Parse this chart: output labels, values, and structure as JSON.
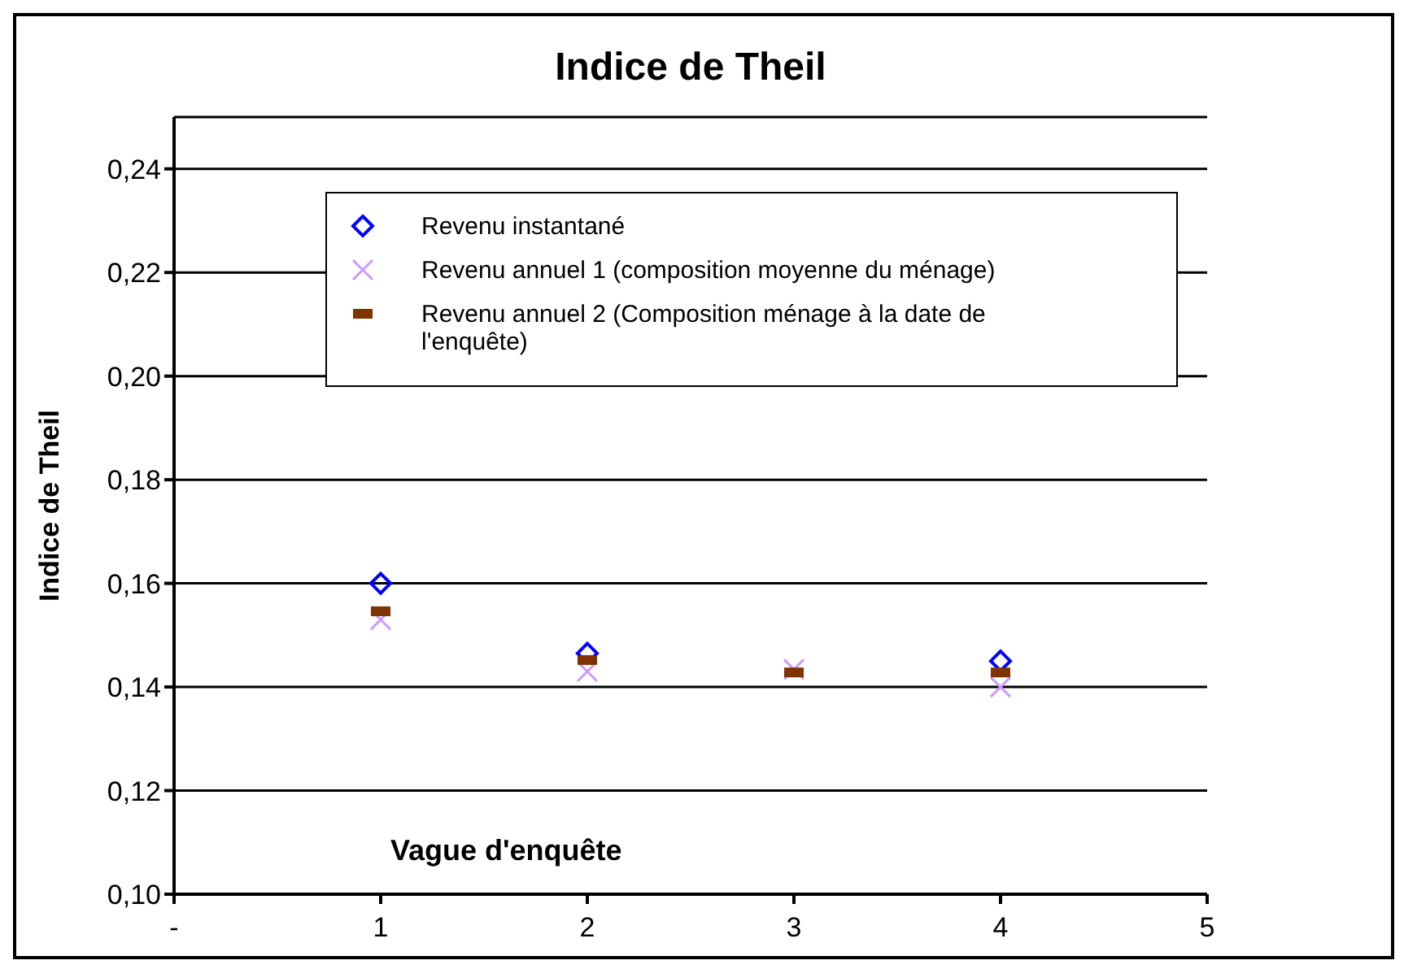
{
  "chart_data": {
    "type": "scatter",
    "title": "Indice de Theil",
    "xlabel": "Vague d'enquête",
    "ylabel": "Indice de Theil",
    "x": [
      1,
      2,
      3,
      4
    ],
    "series": [
      {
        "name": "Revenu instantané",
        "color": "#0000ff",
        "marker": "diamond",
        "values": [
          0.16,
          0.1465,
          null,
          0.145
        ]
      },
      {
        "name": "Revenu annuel 1 (composition moyenne du ménage)",
        "color": "#cc99ff",
        "marker": "cross",
        "values": [
          0.153,
          0.143,
          0.1434,
          0.14
        ]
      },
      {
        "name": "Revenu annuel 2 (Composition ménage à la date de l'enquête)",
        "color": "#7f3300",
        "values": [
          0.1546,
          0.1452,
          0.1428,
          0.1428
        ]
      }
    ],
    "xlim": [
      0,
      5
    ],
    "xticks": [
      {
        "value": 0,
        "label": "-"
      },
      1,
      2,
      3,
      4,
      5
    ],
    "ylim": [
      0.1,
      0.25
    ],
    "yticks": [
      {
        "value": 0.1,
        "label": "0,10"
      },
      {
        "value": 0.12,
        "label": "0,12"
      },
      {
        "value": 0.14,
        "label": "0,14"
      },
      {
        "value": 0.16,
        "label": "0,16"
      },
      {
        "value": 0.18,
        "label": "0,18"
      },
      {
        "value": 0.2,
        "label": "0,20"
      },
      {
        "value": 0.22,
        "label": "0,22"
      },
      {
        "value": 0.24,
        "label": "0,24"
      }
    ],
    "grid": "y",
    "legend": "top"
  }
}
